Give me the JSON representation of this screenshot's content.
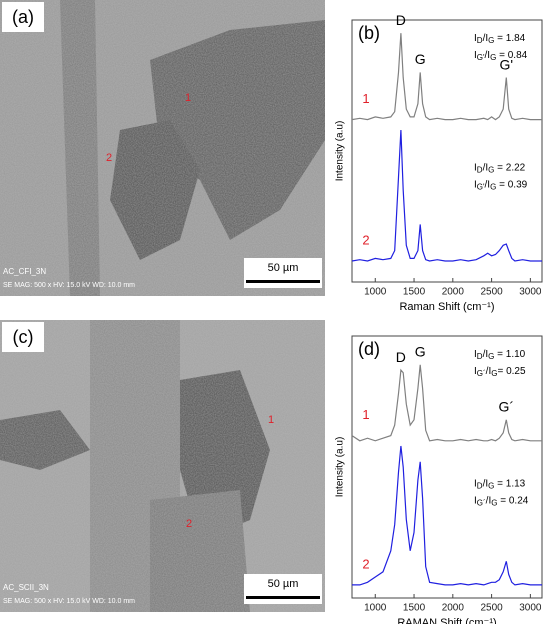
{
  "panels": [
    {
      "letter": "(a)",
      "sample": "AC_CFI_3N",
      "info": "SE MAG: 500 x HV: 15.0 kV WD: 10.0 mm",
      "scale": "50 µm",
      "regions": [
        "1",
        "2"
      ]
    },
    {
      "letter": "(c)",
      "sample": "AC_SCII_3N",
      "info": "SE MAG: 500 x HV: 15.0 kV WD: 10.0 mm",
      "scale": "50 µm",
      "regions": [
        "1",
        "2"
      ]
    }
  ],
  "chart_data": [
    {
      "type": "line",
      "letter": "(b)",
      "x_label": "Raman Shift (cm⁻¹)",
      "y_label": "Intensity (a.u)",
      "xlim": [
        700,
        3150
      ],
      "xticks": [
        1000,
        1500,
        2000,
        2500,
        3000
      ],
      "ylim": [
        0,
        100
      ],
      "peak_labels": [
        "D",
        "G",
        "G'"
      ],
      "name_color": "#e0202a",
      "ratios": [
        [
          [
            "I",
            "D",
            "/I",
            "G",
            " = 1.84"
          ],
          [
            "I",
            "G'",
            "/I",
            "G",
            " = 0.84"
          ]
        ],
        [
          [
            "I",
            "D",
            "/I",
            "G",
            " = 2.22"
          ],
          [
            "I",
            "G'",
            "/I",
            "G",
            " = 0.39"
          ]
        ]
      ],
      "x": [
        700,
        800,
        900,
        1000,
        1100,
        1200,
        1250,
        1300,
        1330,
        1360,
        1400,
        1450,
        1500,
        1550,
        1580,
        1610,
        1650,
        1700,
        1800,
        1900,
        2000,
        2100,
        2200,
        2300,
        2400,
        2450,
        2500,
        2550,
        2600,
        2650,
        2690,
        2720,
        2760,
        2800,
        2900,
        3000,
        3100,
        3150
      ],
      "series": [
        {
          "name": "1",
          "color": "#808080",
          "values": [
            62,
            62.5,
            62,
            63,
            62.5,
            63,
            65,
            80,
            95,
            78,
            66,
            63,
            63,
            68,
            80,
            68,
            63,
            62,
            62.5,
            62,
            62,
            62.5,
            62,
            62,
            62.5,
            62,
            63,
            62,
            63,
            66,
            78,
            66,
            62.5,
            62,
            62.5,
            62,
            62,
            62
          ]
        },
        {
          "name": "2",
          "color": "#2020e0",
          "values": [
            8,
            8.5,
            8,
            9,
            8.5,
            9,
            12,
            40,
            58,
            35,
            14,
            9,
            9,
            12,
            22,
            12,
            8.5,
            8,
            8.5,
            8,
            8,
            8.5,
            8,
            8.5,
            10,
            11,
            10,
            10.5,
            12,
            14,
            14.5,
            12,
            9,
            8,
            8.5,
            8,
            8,
            8
          ]
        }
      ]
    },
    {
      "type": "line",
      "letter": "(d)",
      "x_label": "RAMAN Shift (cm⁻¹)",
      "y_label": "Intensity (a.u)",
      "xlim": [
        700,
        3150
      ],
      "xticks": [
        1000,
        1500,
        2000,
        2500,
        3000
      ],
      "ylim": [
        0,
        100
      ],
      "peak_labels": [
        "D",
        "G",
        "G´"
      ],
      "name_color": "#e0202a",
      "ratios": [
        [
          [
            "I",
            "D",
            "/I",
            "G",
            " = 1.10"
          ],
          [
            "I",
            "G´",
            "/I",
            "G",
            "= 0.25"
          ]
        ],
        [
          [
            "I",
            "D",
            "/I",
            "G",
            " = 1.13"
          ],
          [
            "I",
            "G´",
            "/I",
            "G",
            " = 0.24"
          ]
        ]
      ],
      "x": [
        700,
        800,
        900,
        1000,
        1100,
        1200,
        1250,
        1300,
        1330,
        1360,
        1400,
        1450,
        1500,
        1550,
        1580,
        1610,
        1650,
        1700,
        1800,
        1900,
        2000,
        2100,
        2200,
        2300,
        2400,
        2450,
        2500,
        2550,
        2600,
        2650,
        2690,
        2720,
        2760,
        2800,
        2900,
        3000,
        3100,
        3150
      ],
      "series": [
        {
          "name": "1",
          "color": "#808080",
          "values": [
            62,
            60,
            61,
            60,
            61,
            62,
            66,
            78,
            87,
            86,
            74,
            66,
            68,
            80,
            89,
            80,
            64,
            60,
            60.5,
            60,
            60,
            60.5,
            60,
            60.5,
            60,
            60,
            60.5,
            60,
            61,
            63,
            68,
            63,
            60.5,
            60,
            60.5,
            60,
            60,
            60
          ]
        },
        {
          "name": "2",
          "color": "#2020e0",
          "values": [
            5,
            5,
            6,
            8,
            10,
            18,
            28,
            48,
            58,
            50,
            30,
            18,
            25,
            45,
            52,
            38,
            12,
            6,
            5.5,
            5,
            5,
            5.5,
            5,
            5.5,
            5,
            5.5,
            6,
            6,
            7,
            10,
            14,
            9,
            6,
            5,
            5.5,
            5,
            5,
            5
          ]
        }
      ]
    }
  ]
}
